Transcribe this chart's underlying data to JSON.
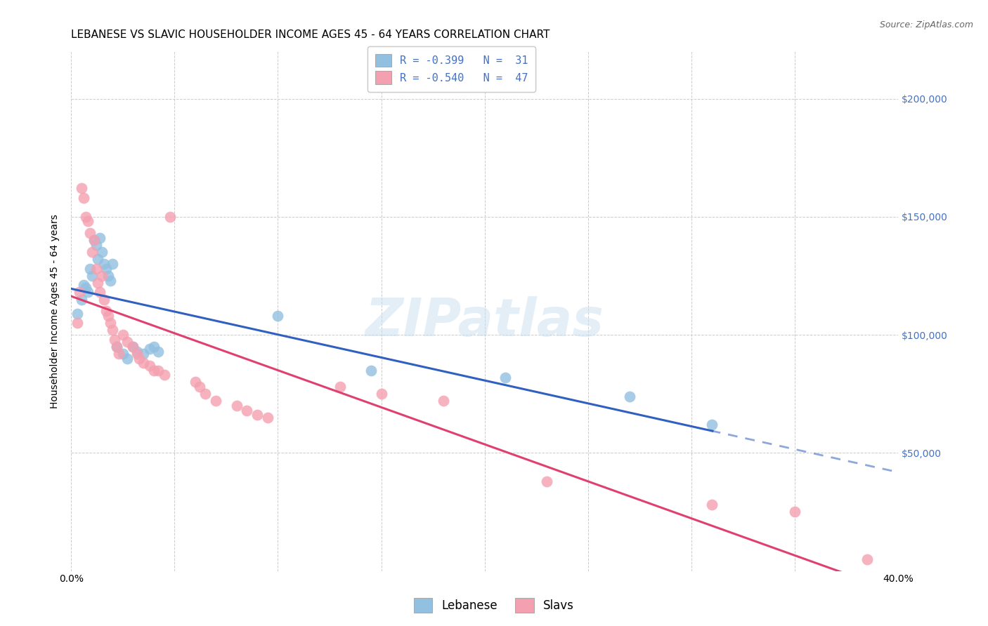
{
  "title": "LEBANESE VS SLAVIC HOUSEHOLDER INCOME AGES 45 - 64 YEARS CORRELATION CHART",
  "source": "Source: ZipAtlas.com",
  "ylabel": "Householder Income Ages 45 - 64 years",
  "xlim": [
    0.0,
    0.4
  ],
  "ylim": [
    0,
    220000
  ],
  "yticks": [
    0,
    50000,
    100000,
    150000,
    200000
  ],
  "ytick_labels": [
    "",
    "$50,000",
    "$100,000",
    "$150,000",
    "$200,000"
  ],
  "xticks": [
    0.0,
    0.05,
    0.1,
    0.15,
    0.2,
    0.25,
    0.3,
    0.35,
    0.4
  ],
  "xtick_labels": [
    "0.0%",
    "",
    "",
    "",
    "",
    "",
    "",
    "",
    "40.0%"
  ],
  "watermark": "ZIPatlas",
  "blue_color": "#92c0e0",
  "pink_color": "#f4a0b0",
  "blue_line_color": "#3060c0",
  "pink_line_color": "#e04070",
  "legend_label_blue": "R = -0.399   N =  31",
  "legend_label_pink": "R = -0.540   N =  47",
  "legend_bottom_blue": "Lebanese",
  "legend_bottom_pink": "Slavs",
  "lebanese_points": [
    [
      0.003,
      109000
    ],
    [
      0.005,
      115000
    ],
    [
      0.006,
      121000
    ],
    [
      0.007,
      120000
    ],
    [
      0.008,
      118000
    ],
    [
      0.009,
      128000
    ],
    [
      0.01,
      125000
    ],
    [
      0.011,
      140000
    ],
    [
      0.012,
      138000
    ],
    [
      0.013,
      132000
    ],
    [
      0.014,
      141000
    ],
    [
      0.015,
      135000
    ],
    [
      0.016,
      130000
    ],
    [
      0.017,
      128000
    ],
    [
      0.018,
      125000
    ],
    [
      0.019,
      123000
    ],
    [
      0.02,
      130000
    ],
    [
      0.022,
      95000
    ],
    [
      0.025,
      92000
    ],
    [
      0.027,
      90000
    ],
    [
      0.03,
      95000
    ],
    [
      0.032,
      93000
    ],
    [
      0.035,
      92000
    ],
    [
      0.038,
      94000
    ],
    [
      0.04,
      95000
    ],
    [
      0.042,
      93000
    ],
    [
      0.1,
      108000
    ],
    [
      0.145,
      85000
    ],
    [
      0.21,
      82000
    ],
    [
      0.27,
      74000
    ],
    [
      0.31,
      62000
    ]
  ],
  "slavic_points": [
    [
      0.003,
      105000
    ],
    [
      0.004,
      118000
    ],
    [
      0.005,
      162000
    ],
    [
      0.006,
      158000
    ],
    [
      0.007,
      150000
    ],
    [
      0.008,
      148000
    ],
    [
      0.009,
      143000
    ],
    [
      0.01,
      135000
    ],
    [
      0.011,
      140000
    ],
    [
      0.012,
      128000
    ],
    [
      0.013,
      122000
    ],
    [
      0.014,
      118000
    ],
    [
      0.015,
      125000
    ],
    [
      0.016,
      115000
    ],
    [
      0.017,
      110000
    ],
    [
      0.018,
      108000
    ],
    [
      0.019,
      105000
    ],
    [
      0.02,
      102000
    ],
    [
      0.021,
      98000
    ],
    [
      0.022,
      95000
    ],
    [
      0.023,
      92000
    ],
    [
      0.025,
      100000
    ],
    [
      0.027,
      97000
    ],
    [
      0.03,
      95000
    ],
    [
      0.032,
      92000
    ],
    [
      0.033,
      90000
    ],
    [
      0.035,
      88000
    ],
    [
      0.038,
      87000
    ],
    [
      0.04,
      85000
    ],
    [
      0.042,
      85000
    ],
    [
      0.045,
      83000
    ],
    [
      0.048,
      150000
    ],
    [
      0.06,
      80000
    ],
    [
      0.062,
      78000
    ],
    [
      0.065,
      75000
    ],
    [
      0.07,
      72000
    ],
    [
      0.08,
      70000
    ],
    [
      0.085,
      68000
    ],
    [
      0.09,
      66000
    ],
    [
      0.095,
      65000
    ],
    [
      0.13,
      78000
    ],
    [
      0.15,
      75000
    ],
    [
      0.18,
      72000
    ],
    [
      0.23,
      38000
    ],
    [
      0.31,
      28000
    ],
    [
      0.35,
      25000
    ],
    [
      0.385,
      5000
    ]
  ],
  "title_fontsize": 11,
  "axis_label_fontsize": 10,
  "tick_fontsize": 10,
  "legend_fontsize": 11,
  "source_fontsize": 9
}
